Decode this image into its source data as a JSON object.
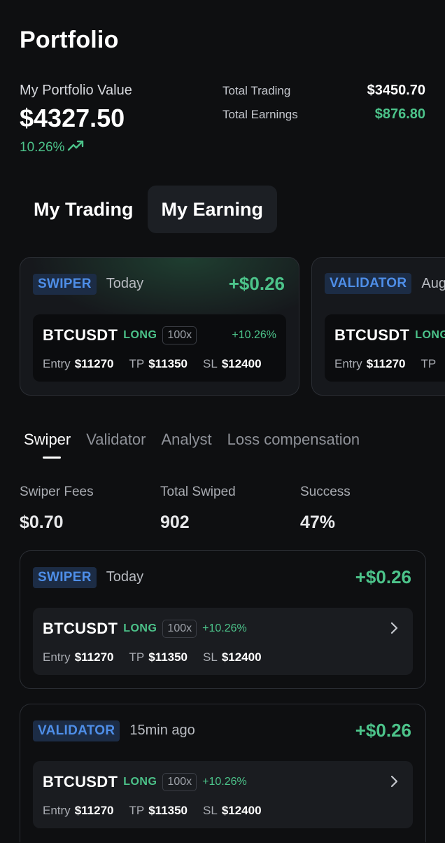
{
  "title": "Portfolio",
  "portfolio": {
    "label": "My Portfolio Value",
    "value": "$4327.50",
    "change": "10.26%",
    "total_trading_label": "Total Trading",
    "total_trading_value": "$3450.70",
    "total_earnings_label": "Total Earnings",
    "total_earnings_value": "$876.80"
  },
  "main_tabs": [
    {
      "label": "My Trading",
      "active": false
    },
    {
      "label": "My Earning",
      "active": true
    }
  ],
  "carousel": [
    {
      "badge": "SWIPER",
      "when": "Today",
      "amount": "+$0.26",
      "pair": "BTCUSDT",
      "side": "LONG",
      "leverage": "100x",
      "pct": "+10.26%",
      "entry_label": "Entry",
      "entry": "$11270",
      "tp_label": "TP",
      "tp": "$11350",
      "sl_label": "SL",
      "sl": "$12400"
    },
    {
      "badge": "VALIDATOR",
      "when": "Aug",
      "amount": "",
      "pair": "BTCUSDT",
      "side": "LONG",
      "leverage": "",
      "pct": "",
      "entry_label": "Entry",
      "entry": "$11270",
      "tp_label": "TP",
      "tp": "",
      "sl_label": "",
      "sl": ""
    }
  ],
  "sub_tabs": [
    {
      "label": "Swiper",
      "active": true
    },
    {
      "label": "Validator",
      "active": false
    },
    {
      "label": "Analyst",
      "active": false
    },
    {
      "label": "Loss compensation",
      "active": false
    }
  ],
  "kpis": [
    {
      "label": "Swiper Fees",
      "value": "$0.70"
    },
    {
      "label": "Total Swiped",
      "value": "902"
    },
    {
      "label": "Success",
      "value": "47%"
    }
  ],
  "list": [
    {
      "badge": "SWIPER",
      "when": "Today",
      "amount": "+$0.26",
      "pair": "BTCUSDT",
      "side": "LONG",
      "leverage": "100x",
      "pct": "+10.26%",
      "entry_label": "Entry",
      "entry": "$11270",
      "tp_label": "TP",
      "tp": "$11350",
      "sl_label": "SL",
      "sl": "$12400"
    },
    {
      "badge": "VALIDATOR",
      "when": "15min ago",
      "amount": "+$0.26",
      "pair": "BTCUSDT",
      "side": "LONG",
      "leverage": "100x",
      "pct": "+10.26%",
      "entry_label": "Entry",
      "entry": "$11270",
      "tp_label": "TP",
      "tp": "$11350",
      "sl_label": "SL",
      "sl": "$12400"
    }
  ],
  "colors": {
    "background": "#0e0f11",
    "positive": "#4cc38a",
    "badge_text": "#4e8ee8",
    "badge_bg": "#1c2c45"
  }
}
